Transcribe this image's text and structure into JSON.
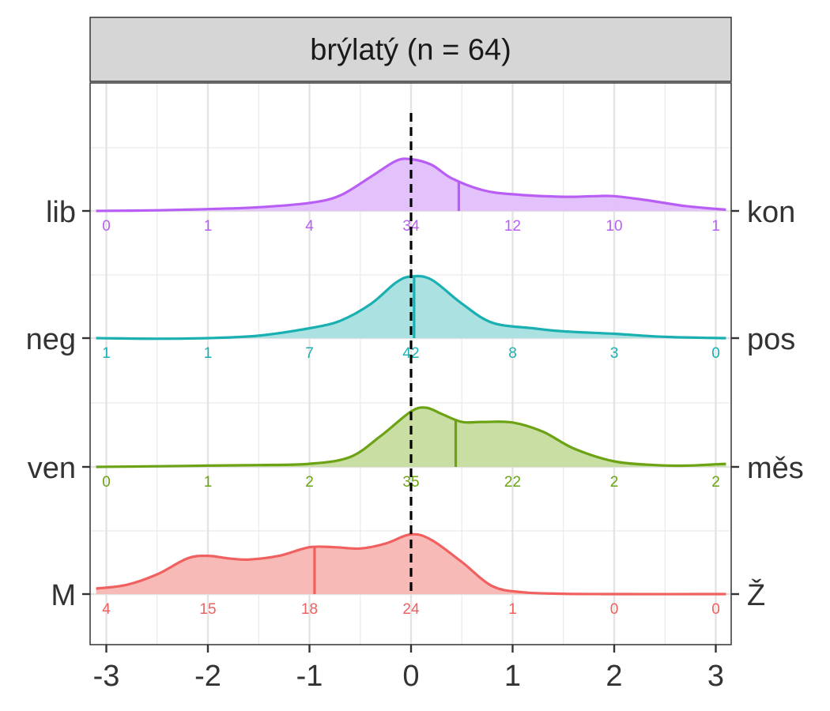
{
  "chart_data": {
    "type": "ridgeline",
    "title": "brýlatý (n = 64)",
    "xlim": [
      -3.1,
      3.1
    ],
    "x_ticks": [
      -3,
      -2,
      -1,
      0,
      1,
      2,
      3
    ],
    "x_tick_labels": [
      "-3",
      "-2",
      "-1",
      "0",
      "1",
      "2",
      "3"
    ],
    "count_positions": [
      -3,
      -2,
      -1,
      0,
      1,
      2,
      3
    ],
    "reference_line_x": 0,
    "grid": true,
    "series": [
      {
        "left_label": "M",
        "right_label": "Ž",
        "color": "#F0605E",
        "fill": "#F8B6B3",
        "median": -0.95,
        "counts": [
          4,
          15,
          18,
          24,
          1,
          0,
          0
        ],
        "density": [
          [
            -3.1,
            0.09
          ],
          [
            -2.8,
            0.15
          ],
          [
            -2.5,
            0.32
          ],
          [
            -2.2,
            0.58
          ],
          [
            -2.0,
            0.62
          ],
          [
            -1.8,
            0.58
          ],
          [
            -1.6,
            0.56
          ],
          [
            -1.3,
            0.62
          ],
          [
            -1.0,
            0.76
          ],
          [
            -0.75,
            0.76
          ],
          [
            -0.5,
            0.74
          ],
          [
            -0.25,
            0.82
          ],
          [
            0.0,
            0.97
          ],
          [
            0.2,
            0.88
          ],
          [
            0.5,
            0.52
          ],
          [
            0.8,
            0.13
          ],
          [
            1.1,
            0.03
          ],
          [
            1.5,
            0.005
          ],
          [
            2.0,
            0.0
          ],
          [
            3.1,
            0.0
          ]
        ]
      },
      {
        "left_label": "ven",
        "right_label": "měs",
        "color": "#6BA314",
        "fill": "#C6DC9E",
        "median": 0.44,
        "counts": [
          0,
          1,
          2,
          35,
          22,
          2,
          2
        ],
        "density": [
          [
            -3.1,
            0.0
          ],
          [
            -2.5,
            0.01
          ],
          [
            -2.0,
            0.02
          ],
          [
            -1.5,
            0.03
          ],
          [
            -1.0,
            0.05
          ],
          [
            -0.6,
            0.16
          ],
          [
            -0.3,
            0.5
          ],
          [
            0.0,
            0.9
          ],
          [
            0.15,
            0.96
          ],
          [
            0.3,
            0.86
          ],
          [
            0.5,
            0.73
          ],
          [
            0.7,
            0.73
          ],
          [
            1.0,
            0.72
          ],
          [
            1.3,
            0.57
          ],
          [
            1.6,
            0.3
          ],
          [
            2.0,
            0.09
          ],
          [
            2.4,
            0.03
          ],
          [
            2.7,
            0.02
          ],
          [
            3.1,
            0.05
          ]
        ]
      },
      {
        "left_label": "neg",
        "right_label": "pos",
        "color": "#1AB0B2",
        "fill": "#A6DFDF",
        "median": 0.03,
        "counts": [
          1,
          1,
          7,
          42,
          8,
          3,
          0
        ],
        "density": [
          [
            -3.1,
            0.0
          ],
          [
            -2.5,
            -0.01
          ],
          [
            -2.0,
            0.0
          ],
          [
            -1.5,
            0.04
          ],
          [
            -1.0,
            0.16
          ],
          [
            -0.7,
            0.28
          ],
          [
            -0.4,
            0.55
          ],
          [
            -0.15,
            0.9
          ],
          [
            0.0,
            1.0
          ],
          [
            0.2,
            0.95
          ],
          [
            0.5,
            0.56
          ],
          [
            0.8,
            0.25
          ],
          [
            1.2,
            0.16
          ],
          [
            1.5,
            0.11
          ],
          [
            2.0,
            0.07
          ],
          [
            2.5,
            0.02
          ],
          [
            3.1,
            0.0
          ]
        ]
      },
      {
        "left_label": "lib",
        "right_label": "kon",
        "color": "#B85EF5",
        "fill": "#E2BFFB",
        "median": 0.47,
        "counts": [
          0,
          1,
          4,
          34,
          12,
          10,
          1
        ],
        "density": [
          [
            -3.1,
            0.0
          ],
          [
            -2.5,
            0.01
          ],
          [
            -2.0,
            0.03
          ],
          [
            -1.5,
            0.06
          ],
          [
            -1.0,
            0.13
          ],
          [
            -0.7,
            0.25
          ],
          [
            -0.4,
            0.55
          ],
          [
            -0.15,
            0.81
          ],
          [
            0.0,
            0.84
          ],
          [
            0.2,
            0.75
          ],
          [
            0.4,
            0.53
          ],
          [
            0.7,
            0.34
          ],
          [
            1.0,
            0.27
          ],
          [
            1.5,
            0.23
          ],
          [
            1.8,
            0.24
          ],
          [
            2.0,
            0.24
          ],
          [
            2.3,
            0.18
          ],
          [
            2.7,
            0.08
          ],
          [
            3.1,
            0.02
          ]
        ]
      }
    ]
  }
}
